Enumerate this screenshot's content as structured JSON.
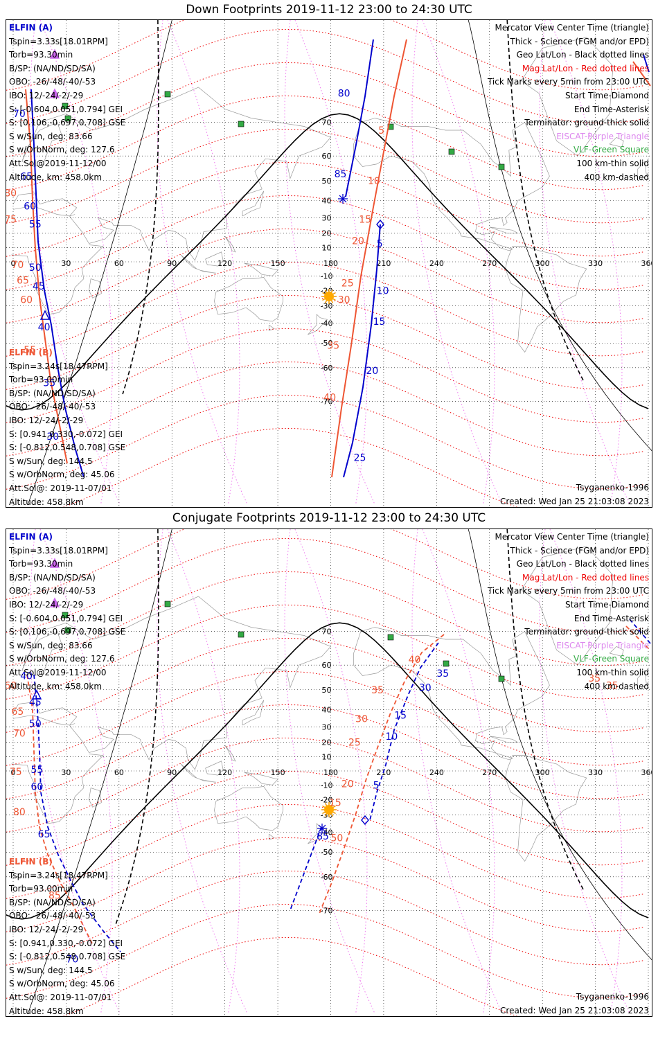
{
  "top": {
    "title": "Down Footprints 2019-11-12 23:00 to 24:30 UTC"
  },
  "bottom": {
    "title": "Conjugate Footprints 2019-11-12 23:00 to 24:30 UTC"
  },
  "elfin_a": {
    "header": "ELFIN (A)",
    "lines": [
      "Tspin=3.33s[18.01RPM]",
      "Torb=93.30min",
      "B/SP: (NA/ND/SD/SA)",
      "OBO: -26/-48/-40/-53",
      "IBO: 12/-24/-2/-29",
      "S: [-0.604,0.051,0.794] GEI",
      "S: [0.106,-0.697,0.708] GSE",
      "S w/Sun, deg: 83.66",
      "S w/OrbNorm, deg: 127.6",
      "Att.Sol@2019-11-12/00",
      "Altitude, km: 458.0km"
    ]
  },
  "elfin_b": {
    "header": "ELFIN (B)",
    "lines": [
      "Tspin=3.24s[18.47RPM]",
      "Torb=93.00min",
      "B/SP: (NA/ND/SD/SA)",
      "OBO: -26/-48/-40/-53",
      "IBO: 12/-24/-2/-29",
      "S: [0.941,0.330,-0.072] GEI",
      "S: [-0.812,0.548,0.708] GSE",
      "S w/Sun, deg: 144.5",
      "S w/OrbNorm, deg: 45.06",
      "Att.Sol@: 2019-11-07/01",
      "Altitude: 458.8km"
    ]
  },
  "legend": {
    "l1": "Mercator View Center Time (triangle)",
    "l2": "Thick - Science (FGM and/or EPD)",
    "l3": "Geo Lat/Lon - Black dotted lines",
    "l4": "Mag Lat/Lon - Red dotted lines",
    "l5": "Tick Marks every 5min from 23:00 UTC",
    "l6": "Start Time-Diamond",
    "l7": "End Time-Asterisk",
    "l8": "Terminator: ground-thick solid",
    "l9": "EISCAT-Purple Triangle",
    "l10": "VLF-Green Square",
    "l11": "100 km-thin solid",
    "l12": "400 km-dashed"
  },
  "footer": {
    "model": "Tsyganenko-1996",
    "created": "Created: Wed Jan 25 21:03:08 2023"
  },
  "map": {
    "lon_ticks": [
      0,
      30,
      60,
      90,
      120,
      150,
      180,
      210,
      240,
      270,
      300,
      330,
      360
    ],
    "lat_ticks": [
      70,
      60,
      50,
      40,
      30,
      20,
      10,
      -10,
      -20,
      -30,
      -40,
      -50,
      -60,
      -70
    ],
    "lon_range": [
      0,
      360
    ],
    "grid_geo_color": "#000000",
    "grid_mag_color": "#ee0000",
    "terminator_color": "#000000",
    "elfin_a_color": "#0000cc",
    "elfin_b_color": "#ee5533",
    "eiscat_color": "#cc66ee",
    "vlf_color": "#33aa44"
  },
  "down_ticks": {
    "a_orbit": [
      {
        "t": "80",
        "lon": 184,
        "lat": 76
      },
      {
        "t": "85",
        "lon": 182,
        "lat": 53
      },
      {
        "t": "5",
        "lon": 206,
        "lat": 13
      },
      {
        "t": "10",
        "lon": 206,
        "lat": -20
      },
      {
        "t": "15",
        "lon": 204,
        "lat": -39
      },
      {
        "t": "20",
        "lon": 200,
        "lat": -61
      },
      {
        "t": "25",
        "lon": 193,
        "lat": -80
      }
    ],
    "a_left": [
      {
        "t": "70",
        "lon": 0,
        "lat": 72
      },
      {
        "t": "65",
        "lon": 4,
        "lat": 52
      },
      {
        "t": "60",
        "lon": 6,
        "lat": 37
      },
      {
        "t": "55",
        "lon": 9,
        "lat": 26
      },
      {
        "t": "50",
        "lon": 9,
        "lat": -4
      },
      {
        "t": "45",
        "lon": 11,
        "lat": -17
      },
      {
        "t": "40",
        "lon": 14,
        "lat": -42
      },
      {
        "t": "35",
        "lon": 17,
        "lat": -65
      },
      {
        "t": "30",
        "lon": 19,
        "lat": -77
      }
    ],
    "b_orbit": [
      {
        "t": "5",
        "lon": 207,
        "lat": 68
      },
      {
        "t": "10",
        "lon": 201,
        "lat": 50
      },
      {
        "t": "15",
        "lon": 196,
        "lat": 29
      },
      {
        "t": "20",
        "lon": 192,
        "lat": 15
      },
      {
        "t": "25",
        "lon": 186,
        "lat": -15
      },
      {
        "t": "30",
        "lon": 184,
        "lat": -26
      },
      {
        "t": "35",
        "lon": 178,
        "lat": -51
      },
      {
        "t": "40",
        "lon": 176,
        "lat": -69
      }
    ],
    "b_left": [
      {
        "t": "80",
        "lon": -5,
        "lat": 44
      },
      {
        "t": "75",
        "lon": -5,
        "lat": 29
      },
      {
        "t": "70",
        "lon": -1,
        "lat": -2
      },
      {
        "t": "65",
        "lon": 2,
        "lat": -13
      },
      {
        "t": "60",
        "lon": 4,
        "lat": -26
      },
      {
        "t": "55",
        "lon": 6,
        "lat": -53
      }
    ]
  },
  "conj_ticks": {
    "a_orbit": [
      {
        "t": "35",
        "lon": 240,
        "lat": 57
      },
      {
        "t": "30",
        "lon": 230,
        "lat": 51
      },
      {
        "t": "15",
        "lon": 216,
        "lat": 37
      },
      {
        "t": "10",
        "lon": 211,
        "lat": 24
      },
      {
        "t": "5",
        "lon": 204,
        "lat": -10
      },
      {
        "t": "85",
        "lon": 172,
        "lat": -42
      }
    ],
    "a_left": [
      {
        "t": "40",
        "lon": 4,
        "lat": 56
      },
      {
        "t": "45",
        "lon": 9,
        "lat": 44
      },
      {
        "t": "50",
        "lon": 9,
        "lat": 32
      },
      {
        "t": "55",
        "lon": 10,
        "lat": 1
      },
      {
        "t": "60",
        "lon": 10,
        "lat": -11
      },
      {
        "t": "65",
        "lon": 14,
        "lat": -41
      },
      {
        "t": "70",
        "lon": 30,
        "lat": -79
      }
    ],
    "b_orbit": [
      {
        "t": "40",
        "lon": 224,
        "lat": 62
      },
      {
        "t": "35",
        "lon": 203,
        "lat": 50
      },
      {
        "t": "30",
        "lon": 194,
        "lat": 35
      },
      {
        "t": "25",
        "lon": 190,
        "lat": 20
      },
      {
        "t": "20",
        "lon": 186,
        "lat": -9
      },
      {
        "t": "15",
        "lon": 179,
        "lat": -22
      },
      {
        "t": "50",
        "lon": 180,
        "lat": -43
      }
    ],
    "b_left": [
      {
        "t": "60",
        "lon": -5,
        "lat": 52
      },
      {
        "t": "65",
        "lon": -1,
        "lat": 39
      },
      {
        "t": "70",
        "lon": 0,
        "lat": 26
      },
      {
        "t": "75",
        "lon": -2,
        "lat": -0.5
      },
      {
        "t": "80",
        "lon": 0,
        "lat": -28
      },
      {
        "t": "85",
        "lon": 20,
        "lat": -66
      },
      {
        "t": "35",
        "lon": 326,
        "lat": 55
      },
      {
        "t": "35",
        "lon": 336,
        "lat": 52
      }
    ]
  }
}
